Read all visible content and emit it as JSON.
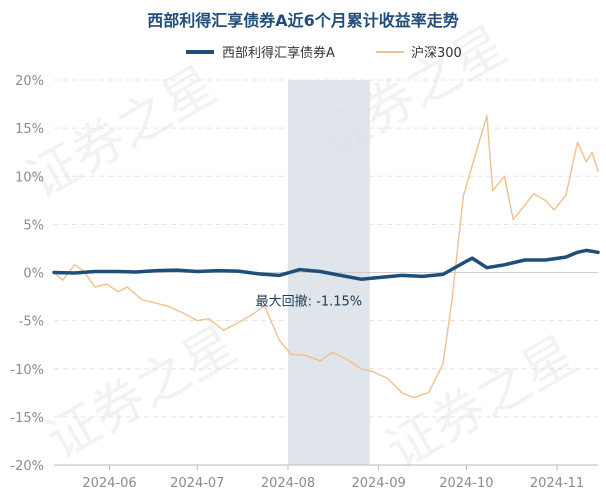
{
  "chart_data": {
    "type": "line",
    "title": "西部利得汇享债券A近6个月累计收益率走势",
    "xlabel": "",
    "ylabel": "",
    "ylim": [
      -20,
      20
    ],
    "y_ticks": [
      "20%",
      "15%",
      "10%",
      "5%",
      "0%",
      "-5%",
      "-10%",
      "-15%",
      "-20%"
    ],
    "x_ticks": [
      {
        "label": "2024-06",
        "date": "2024-06-01"
      },
      {
        "label": "2024-07",
        "date": "2024-07-01"
      },
      {
        "label": "2024-08",
        "date": "2024-08-01"
      },
      {
        "label": "2024-09",
        "date": "2024-09-01"
      },
      {
        "label": "2024-10",
        "date": "2024-10-01"
      },
      {
        "label": "2024-11",
        "date": "2024-11-01"
      }
    ],
    "x_range": [
      "2024-05-13",
      "2024-11-15"
    ],
    "grid": "horizontal",
    "legend_position": "top-center",
    "watermark": "证券之星",
    "series": [
      {
        "name": "西部利得汇享债券A",
        "color": "#1f4e79",
        "points": [
          [
            "2024-05-13",
            0.0
          ],
          [
            "2024-05-20",
            -0.05
          ],
          [
            "2024-05-27",
            0.1
          ],
          [
            "2024-06-03",
            0.1
          ],
          [
            "2024-06-10",
            0.05
          ],
          [
            "2024-06-17",
            0.2
          ],
          [
            "2024-06-24",
            0.25
          ],
          [
            "2024-07-01",
            0.1
          ],
          [
            "2024-07-08",
            0.2
          ],
          [
            "2024-07-15",
            0.15
          ],
          [
            "2024-07-22",
            -0.15
          ],
          [
            "2024-07-29",
            -0.3
          ],
          [
            "2024-08-05",
            0.3
          ],
          [
            "2024-08-12",
            0.1
          ],
          [
            "2024-08-19",
            -0.3
          ],
          [
            "2024-08-26",
            -0.7
          ],
          [
            "2024-09-02",
            -0.5
          ],
          [
            "2024-09-09",
            -0.3
          ],
          [
            "2024-09-16",
            -0.4
          ],
          [
            "2024-09-23",
            -0.2
          ],
          [
            "2024-09-30",
            1.0
          ],
          [
            "2024-10-03",
            1.5
          ],
          [
            "2024-10-08",
            0.5
          ],
          [
            "2024-10-14",
            0.8
          ],
          [
            "2024-10-21",
            1.3
          ],
          [
            "2024-10-28",
            1.3
          ],
          [
            "2024-11-04",
            1.6
          ],
          [
            "2024-11-08",
            2.1
          ],
          [
            "2024-11-11",
            2.3
          ],
          [
            "2024-11-15",
            2.1
          ]
        ]
      },
      {
        "name": "沪深300",
        "color": "#f0c08f",
        "points": [
          [
            "2024-05-13",
            0.0
          ],
          [
            "2024-05-16",
            -0.8
          ],
          [
            "2024-05-20",
            0.8
          ],
          [
            "2024-05-23",
            0.2
          ],
          [
            "2024-05-27",
            -1.5
          ],
          [
            "2024-05-31",
            -1.2
          ],
          [
            "2024-06-04",
            -2.0
          ],
          [
            "2024-06-07",
            -1.5
          ],
          [
            "2024-06-12",
            -2.8
          ],
          [
            "2024-06-17",
            -3.2
          ],
          [
            "2024-06-21",
            -3.5
          ],
          [
            "2024-06-26",
            -4.2
          ],
          [
            "2024-07-01",
            -5.0
          ],
          [
            "2024-07-05",
            -4.8
          ],
          [
            "2024-07-10",
            -6.0
          ],
          [
            "2024-07-15",
            -5.2
          ],
          [
            "2024-07-19",
            -4.5
          ],
          [
            "2024-07-24",
            -3.5
          ],
          [
            "2024-07-29",
            -7.0
          ],
          [
            "2024-08-02",
            -8.5
          ],
          [
            "2024-08-07",
            -8.6
          ],
          [
            "2024-08-12",
            -9.2
          ],
          [
            "2024-08-16",
            -8.3
          ],
          [
            "2024-08-21",
            -9.0
          ],
          [
            "2024-08-26",
            -10.0
          ],
          [
            "2024-08-30",
            -10.3
          ],
          [
            "2024-09-04",
            -11.0
          ],
          [
            "2024-09-09",
            -12.5
          ],
          [
            "2024-09-13",
            -13.0
          ],
          [
            "2024-09-18",
            -12.5
          ],
          [
            "2024-09-23",
            -9.5
          ],
          [
            "2024-09-26",
            -3.0
          ],
          [
            "2024-09-30",
            8.0
          ],
          [
            "2024-10-08",
            16.3
          ],
          [
            "2024-10-10",
            8.5
          ],
          [
            "2024-10-14",
            10.0
          ],
          [
            "2024-10-17",
            5.5
          ],
          [
            "2024-10-21",
            7.0
          ],
          [
            "2024-10-24",
            8.2
          ],
          [
            "2024-10-28",
            7.5
          ],
          [
            "2024-10-31",
            6.5
          ],
          [
            "2024-11-04",
            8.0
          ],
          [
            "2024-11-08",
            13.5
          ],
          [
            "2024-11-11",
            11.5
          ],
          [
            "2024-11-13",
            12.5
          ],
          [
            "2024-11-15",
            10.5
          ]
        ]
      }
    ],
    "annotations": [
      {
        "text": "最大回撤: -1.15%",
        "shaded_range": [
          "2024-08-01",
          "2024-08-29"
        ],
        "shade_color": "#d9e1e8"
      }
    ]
  }
}
